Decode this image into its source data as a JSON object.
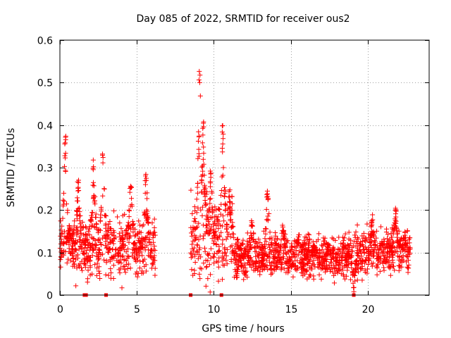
{
  "chart_data": {
    "type": "scatter",
    "title": "Day 085 of 2022, SRMTID for receiver ous2",
    "xlabel": "GPS time / hours",
    "ylabel": "SRMTID / TECUs",
    "xlim": [
      0,
      24
    ],
    "ylim": [
      0,
      0.6
    ],
    "x_ticks": [
      0,
      5,
      10,
      15,
      20
    ],
    "y_ticks": [
      0,
      0.1,
      0.2,
      0.3,
      0.4,
      0.5,
      0.6
    ],
    "x_tick_labels": [
      "0",
      "5",
      "10",
      "15",
      "20"
    ],
    "y_tick_labels": [
      "0",
      "0.1",
      "0.2",
      "0.3",
      "0.4",
      "0.5",
      "0.6"
    ],
    "grid": true,
    "marker": "+",
    "color": "#ff0000",
    "series": [
      {
        "name": "ous2",
        "segments": [
          {
            "start": 0.0,
            "end": 6.2,
            "base": 0.11,
            "spread": 0.05,
            "peaks": [
              [
                0.35,
                0.38
              ],
              [
                0.6,
                0.17
              ],
              [
                1.2,
                0.28
              ],
              [
                2.2,
                0.32
              ],
              [
                2.8,
                0.34
              ],
              [
                4.6,
                0.28
              ],
              [
                5.6,
                0.29
              ]
            ]
          },
          {
            "start": 8.5,
            "end": 11.3,
            "base": 0.13,
            "spread": 0.07,
            "peaks": [
              [
                9.1,
                0.53
              ],
              [
                9.3,
                0.42
              ],
              [
                9.8,
                0.3
              ],
              [
                10.6,
                0.4
              ],
              [
                11.0,
                0.25
              ]
            ]
          },
          {
            "start": 11.3,
            "end": 19.0,
            "base": 0.09,
            "spread": 0.035,
            "peaks": [
              [
                12.5,
                0.18
              ],
              [
                13.5,
                0.25
              ],
              [
                14.5,
                0.17
              ],
              [
                15.5,
                0.15
              ],
              [
                16.5,
                0.12
              ]
            ]
          },
          {
            "start": 19.0,
            "end": 22.8,
            "base": 0.1,
            "spread": 0.04,
            "peaks": [
              [
                19.1,
                0.0
              ],
              [
                20.3,
                0.19
              ],
              [
                21.8,
                0.21
              ],
              [
                22.4,
                0.15
              ]
            ]
          }
        ],
        "zero_points": [
          1.6,
          1.7,
          3.0,
          8.5,
          10.5,
          19.1
        ]
      }
    ]
  }
}
